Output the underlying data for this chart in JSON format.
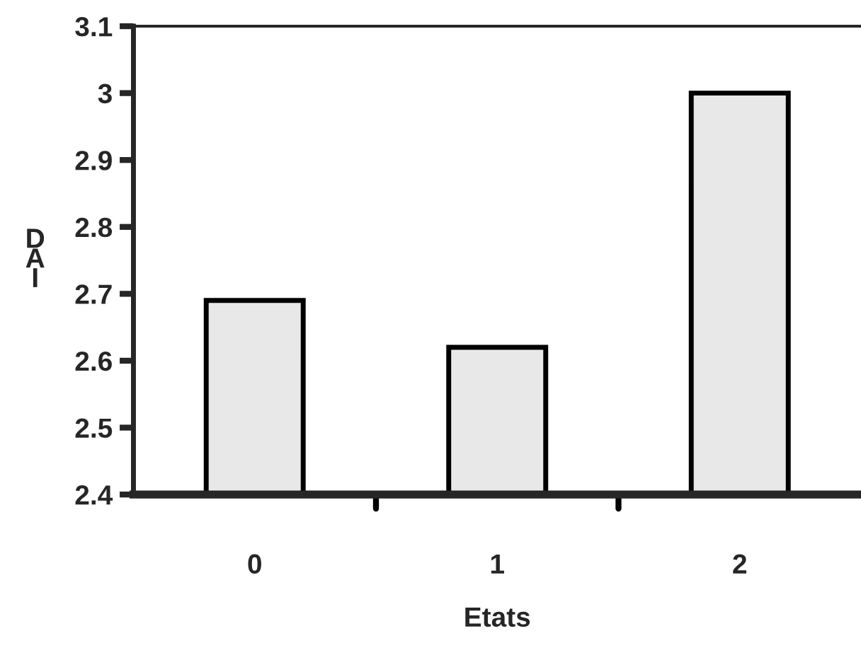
{
  "chart_data": {
    "type": "bar",
    "xlabel": "Etats",
    "ylabel": "DAI",
    "categories": [
      "0",
      "1",
      "2"
    ],
    "values": [
      2.69,
      2.62,
      3.0
    ],
    "color": "#e8e8e8",
    "ylim": [
      2.4,
      3.1
    ],
    "yticks": [
      2.4,
      2.5,
      2.6,
      2.7,
      2.8,
      2.9,
      3,
      3.1
    ],
    "grid": false,
    "legend": false
  }
}
